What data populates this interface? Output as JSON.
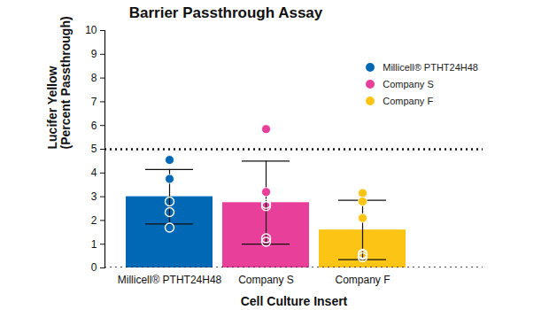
{
  "chart_data": {
    "type": "bar",
    "title": "Barrier Passthrough Assay",
    "x_label": "Cell Culture Insert",
    "y_label": "Lucifer Yellow\n(Percent Passthrough)",
    "categories": [
      "Millicell® PTHT24H48",
      "Company S",
      "Company F"
    ],
    "values": [
      3.0,
      2.75,
      1.6
    ],
    "error": [
      1.15,
      1.75,
      1.25
    ],
    "colors": [
      "#0068b4",
      "#e8409a",
      "#fcc515"
    ],
    "points_filled": [
      [
        4.55,
        3.75
      ],
      [
        5.85,
        3.2
      ],
      [
        3.15,
        2.8,
        2.1
      ]
    ],
    "points_open": [
      [
        2.8,
        2.35,
        1.7
      ],
      [
        2.7,
        2.6,
        1.25,
        1.1
      ],
      [
        0.6,
        0.55,
        0.45
      ]
    ],
    "reference_lines": [
      0,
      5
    ],
    "line_style": "dotted",
    "ylim": [
      0,
      10
    ],
    "yticks": [
      0,
      1,
      2,
      3,
      4,
      5,
      6,
      7,
      8,
      9,
      10
    ],
    "grid": false,
    "legend": "upper right"
  }
}
